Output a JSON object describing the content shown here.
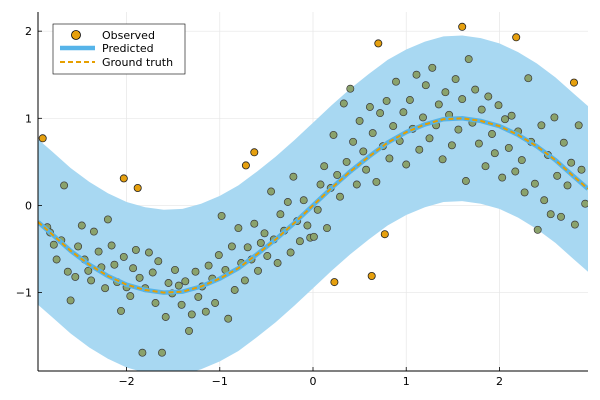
{
  "chart_data": {
    "type": "scatter",
    "xlim": [
      -2.95,
      2.95
    ],
    "ylim": [
      -1.9,
      2.22
    ],
    "x_ticks": [
      -2,
      -1,
      0,
      1,
      2
    ],
    "x_tick_labels": [
      "−2",
      "−1",
      "0",
      "1",
      "2"
    ],
    "y_ticks": [
      -1,
      0,
      1,
      2
    ],
    "y_tick_labels": [
      "−1",
      "0",
      "1",
      "2"
    ],
    "grid": true,
    "legend_position": "top-left",
    "legend": {
      "observed": "Observed",
      "predicted": "Predicted",
      "ground_truth": "Ground truth"
    },
    "band_halfwidth": 0.95,
    "curve_x": [
      -2.95,
      -2.8,
      -2.6,
      -2.4,
      -2.2,
      -2.0,
      -1.8,
      -1.6,
      -1.4,
      -1.2,
      -1.0,
      -0.8,
      -0.6,
      -0.4,
      -0.2,
      0.0,
      0.2,
      0.4,
      0.6,
      0.8,
      1.0,
      1.2,
      1.4,
      1.6,
      1.8,
      2.0,
      2.2,
      2.4,
      2.6,
      2.8,
      2.95
    ],
    "curve_y": [
      -0.19,
      -0.33,
      -0.52,
      -0.68,
      -0.81,
      -0.91,
      -0.97,
      -1.0,
      -0.99,
      -0.93,
      -0.84,
      -0.72,
      -0.56,
      -0.39,
      -0.2,
      0.0,
      0.2,
      0.39,
      0.56,
      0.72,
      0.84,
      0.93,
      0.99,
      1.0,
      0.97,
      0.91,
      0.81,
      0.68,
      0.52,
      0.33,
      0.19
    ],
    "outliers": [
      {
        "x": -2.9,
        "y": 0.77
      },
      {
        "x": -2.03,
        "y": 0.31
      },
      {
        "x": -1.88,
        "y": 0.2
      },
      {
        "x": -0.72,
        "y": 0.46
      },
      {
        "x": -0.63,
        "y": 0.61
      },
      {
        "x": 0.23,
        "y": -0.88
      },
      {
        "x": 0.63,
        "y": -0.81
      },
      {
        "x": 0.7,
        "y": 1.86
      },
      {
        "x": 0.77,
        "y": -0.33
      },
      {
        "x": 1.6,
        "y": 2.05
      },
      {
        "x": 2.18,
        "y": 1.93
      },
      {
        "x": 2.8,
        "y": 1.41
      }
    ],
    "points": [
      {
        "x": -2.85,
        "y": -0.25
      },
      {
        "x": -2.82,
        "y": -0.31
      },
      {
        "x": -2.78,
        "y": -0.45
      },
      {
        "x": -2.75,
        "y": -0.62
      },
      {
        "x": -2.7,
        "y": -0.4
      },
      {
        "x": -2.67,
        "y": 0.23
      },
      {
        "x": -2.63,
        "y": -0.76
      },
      {
        "x": -2.6,
        "y": -1.09
      },
      {
        "x": -2.55,
        "y": -0.82
      },
      {
        "x": -2.52,
        "y": -0.47
      },
      {
        "x": -2.48,
        "y": -0.23
      },
      {
        "x": -2.45,
        "y": -0.62
      },
      {
        "x": -2.41,
        "y": -0.75
      },
      {
        "x": -2.38,
        "y": -0.86
      },
      {
        "x": -2.35,
        "y": -0.3
      },
      {
        "x": -2.3,
        "y": -0.53
      },
      {
        "x": -2.27,
        "y": -0.71
      },
      {
        "x": -2.23,
        "y": -0.95
      },
      {
        "x": -2.2,
        "y": -0.16
      },
      {
        "x": -2.16,
        "y": -0.46
      },
      {
        "x": -2.13,
        "y": -0.68
      },
      {
        "x": -2.1,
        "y": -0.88
      },
      {
        "x": -2.06,
        "y": -1.21
      },
      {
        "x": -2.03,
        "y": -0.59
      },
      {
        "x": -2.0,
        "y": -0.94
      },
      {
        "x": -1.96,
        "y": -1.04
      },
      {
        "x": -1.93,
        "y": -0.72
      },
      {
        "x": -1.9,
        "y": -0.51
      },
      {
        "x": -1.86,
        "y": -0.83
      },
      {
        "x": -1.83,
        "y": -1.69
      },
      {
        "x": -1.8,
        "y": -0.95
      },
      {
        "x": -1.76,
        "y": -0.54
      },
      {
        "x": -1.72,
        "y": -0.77
      },
      {
        "x": -1.69,
        "y": -1.12
      },
      {
        "x": -1.66,
        "y": -0.64
      },
      {
        "x": -1.62,
        "y": -1.69
      },
      {
        "x": -1.58,
        "y": -1.28
      },
      {
        "x": -1.55,
        "y": -0.89
      },
      {
        "x": -1.51,
        "y": -1.01
      },
      {
        "x": -1.48,
        "y": -0.74
      },
      {
        "x": -1.44,
        "y": -0.92
      },
      {
        "x": -1.41,
        "y": -1.14
      },
      {
        "x": -1.37,
        "y": -0.87
      },
      {
        "x": -1.33,
        "y": -1.44
      },
      {
        "x": -1.3,
        "y": -1.25
      },
      {
        "x": -1.26,
        "y": -0.76
      },
      {
        "x": -1.23,
        "y": -1.05
      },
      {
        "x": -1.19,
        "y": -0.93
      },
      {
        "x": -1.15,
        "y": -1.22
      },
      {
        "x": -1.12,
        "y": -0.69
      },
      {
        "x": -1.08,
        "y": -0.84
      },
      {
        "x": -1.05,
        "y": -1.12
      },
      {
        "x": -1.01,
        "y": -0.57
      },
      {
        "x": -0.98,
        "y": -0.12
      },
      {
        "x": -0.94,
        "y": -0.74
      },
      {
        "x": -0.91,
        "y": -1.3
      },
      {
        "x": -0.87,
        "y": -0.47
      },
      {
        "x": -0.84,
        "y": -0.97
      },
      {
        "x": -0.8,
        "y": -0.26
      },
      {
        "x": -0.77,
        "y": -0.66
      },
      {
        "x": -0.73,
        "y": -0.86
      },
      {
        "x": -0.7,
        "y": -0.48
      },
      {
        "x": -0.66,
        "y": -0.62
      },
      {
        "x": -0.63,
        "y": -0.21
      },
      {
        "x": -0.59,
        "y": -0.75
      },
      {
        "x": -0.56,
        "y": -0.43
      },
      {
        "x": -0.52,
        "y": -0.32
      },
      {
        "x": -0.49,
        "y": -0.58
      },
      {
        "x": -0.45,
        "y": 0.16
      },
      {
        "x": -0.42,
        "y": -0.39
      },
      {
        "x": -0.38,
        "y": -0.66
      },
      {
        "x": -0.35,
        "y": -0.1
      },
      {
        "x": -0.31,
        "y": -0.29
      },
      {
        "x": -0.27,
        "y": 0.04
      },
      {
        "x": -0.24,
        "y": -0.54
      },
      {
        "x": -0.21,
        "y": 0.33
      },
      {
        "x": -0.17,
        "y": -0.18
      },
      {
        "x": -0.14,
        "y": -0.41
      },
      {
        "x": -0.1,
        "y": 0.06
      },
      {
        "x": -0.06,
        "y": -0.23
      },
      {
        "x": -0.03,
        "y": -0.37
      },
      {
        "x": 0.01,
        "y": -0.36
      },
      {
        "x": 0.05,
        "y": -0.05
      },
      {
        "x": 0.08,
        "y": 0.24
      },
      {
        "x": 0.12,
        "y": 0.45
      },
      {
        "x": 0.15,
        "y": -0.26
      },
      {
        "x": 0.19,
        "y": 0.2
      },
      {
        "x": 0.22,
        "y": 0.81
      },
      {
        "x": 0.26,
        "y": 0.35
      },
      {
        "x": 0.29,
        "y": 0.1
      },
      {
        "x": 0.33,
        "y": 1.17
      },
      {
        "x": 0.36,
        "y": 0.5
      },
      {
        "x": 0.4,
        "y": 1.34
      },
      {
        "x": 0.43,
        "y": 0.73
      },
      {
        "x": 0.47,
        "y": 0.24
      },
      {
        "x": 0.5,
        "y": 0.97
      },
      {
        "x": 0.54,
        "y": 0.62
      },
      {
        "x": 0.57,
        "y": 0.41
      },
      {
        "x": 0.61,
        "y": 1.13
      },
      {
        "x": 0.64,
        "y": 0.83
      },
      {
        "x": 0.68,
        "y": 0.27
      },
      {
        "x": 0.72,
        "y": 1.06
      },
      {
        "x": 0.75,
        "y": 0.68
      },
      {
        "x": 0.79,
        "y": 1.2
      },
      {
        "x": 0.82,
        "y": 0.54
      },
      {
        "x": 0.86,
        "y": 0.91
      },
      {
        "x": 0.89,
        "y": 1.42
      },
      {
        "x": 0.93,
        "y": 0.74
      },
      {
        "x": 0.97,
        "y": 1.07
      },
      {
        "x": 1.0,
        "y": 0.47
      },
      {
        "x": 1.04,
        "y": 1.21
      },
      {
        "x": 1.07,
        "y": 0.88
      },
      {
        "x": 1.11,
        "y": 1.5
      },
      {
        "x": 1.14,
        "y": 0.64
      },
      {
        "x": 1.18,
        "y": 1.01
      },
      {
        "x": 1.21,
        "y": 1.38
      },
      {
        "x": 1.25,
        "y": 0.77
      },
      {
        "x": 1.28,
        "y": 1.58
      },
      {
        "x": 1.32,
        "y": 0.92
      },
      {
        "x": 1.35,
        "y": 1.16
      },
      {
        "x": 1.39,
        "y": 0.53
      },
      {
        "x": 1.42,
        "y": 1.3
      },
      {
        "x": 1.46,
        "y": 1.04
      },
      {
        "x": 1.49,
        "y": 0.69
      },
      {
        "x": 1.53,
        "y": 1.45
      },
      {
        "x": 1.56,
        "y": 0.87
      },
      {
        "x": 1.6,
        "y": 1.22
      },
      {
        "x": 1.64,
        "y": 0.28
      },
      {
        "x": 1.67,
        "y": 1.68
      },
      {
        "x": 1.71,
        "y": 0.95
      },
      {
        "x": 1.74,
        "y": 1.33
      },
      {
        "x": 1.78,
        "y": 0.71
      },
      {
        "x": 1.81,
        "y": 1.1
      },
      {
        "x": 1.85,
        "y": 0.45
      },
      {
        "x": 1.88,
        "y": 1.25
      },
      {
        "x": 1.92,
        "y": 0.82
      },
      {
        "x": 1.95,
        "y": 0.6
      },
      {
        "x": 1.99,
        "y": 1.15
      },
      {
        "x": 2.03,
        "y": 0.32
      },
      {
        "x": 2.06,
        "y": 0.99
      },
      {
        "x": 2.1,
        "y": 0.66
      },
      {
        "x": 2.13,
        "y": 1.03
      },
      {
        "x": 2.17,
        "y": 0.39
      },
      {
        "x": 2.2,
        "y": 0.85
      },
      {
        "x": 2.24,
        "y": 0.52
      },
      {
        "x": 2.27,
        "y": 0.15
      },
      {
        "x": 2.31,
        "y": 1.46
      },
      {
        "x": 2.34,
        "y": 0.73
      },
      {
        "x": 2.38,
        "y": 0.25
      },
      {
        "x": 2.41,
        "y": -0.28
      },
      {
        "x": 2.45,
        "y": 0.92
      },
      {
        "x": 2.48,
        "y": 0.06
      },
      {
        "x": 2.52,
        "y": 0.58
      },
      {
        "x": 2.55,
        "y": -0.1
      },
      {
        "x": 2.59,
        "y": 1.01
      },
      {
        "x": 2.62,
        "y": 0.34
      },
      {
        "x": 2.66,
        "y": -0.13
      },
      {
        "x": 2.69,
        "y": 0.72
      },
      {
        "x": 2.73,
        "y": 0.23
      },
      {
        "x": 2.77,
        "y": 0.49
      },
      {
        "x": 2.81,
        "y": -0.22
      },
      {
        "x": 2.85,
        "y": 0.92
      },
      {
        "x": 2.88,
        "y": 0.41
      },
      {
        "x": 2.92,
        "y": 0.02
      }
    ]
  }
}
